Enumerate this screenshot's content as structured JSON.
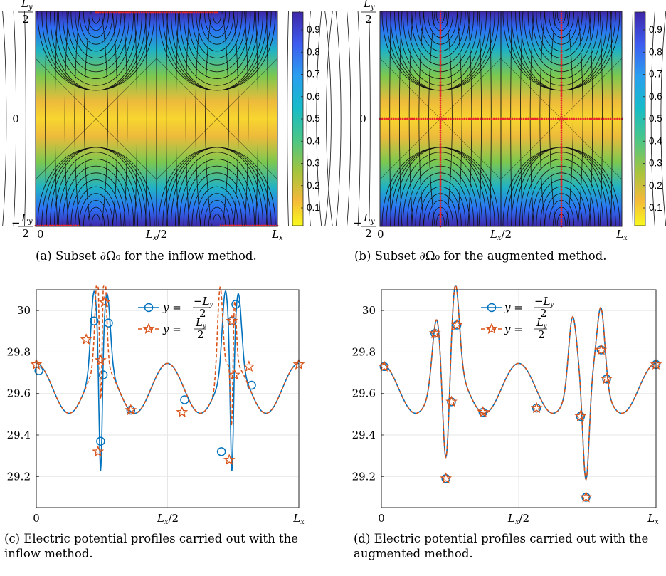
{
  "captions": {
    "a": "(a) Subset ∂Ω₀ for the inflow method.",
    "b": "(b) Subset ∂Ω₀ for the augmented method.",
    "c": "(c) Electric potential profiles carried out with the inflow method.",
    "d": "(d) Electric potential profiles carried out with the augmented method."
  },
  "colorbar_ticks": [
    "0.1",
    "0.2",
    "0.3",
    "0.4",
    "0.5",
    "0.6",
    "0.7",
    "0.8",
    "0.9"
  ],
  "colors": {
    "blue_series": "#0072bd",
    "orange_series": "#d95319",
    "boundary_marker": "#e8262a"
  },
  "chart_data": [
    {
      "id": "a",
      "type": "heatmap",
      "description_field": "field magnitude with streamlines, periodic in x",
      "xticks": [
        "0",
        "L_x/2",
        "L_x"
      ],
      "yticks": [
        "-L_y/2",
        "0",
        "L_y/2"
      ],
      "colorbar": {
        "range": [
          0,
          1
        ],
        "ticks": [
          0.1,
          0.2,
          0.3,
          0.4,
          0.5,
          0.6,
          0.7,
          0.8,
          0.9
        ]
      },
      "subset": "top and bottom boundary segments (inflow)"
    },
    {
      "id": "b",
      "type": "heatmap",
      "xticks": [
        "0",
        "L_x/2",
        "L_x"
      ],
      "yticks": [
        "-L_y/2",
        "0",
        "L_y/2"
      ],
      "colorbar": {
        "range": [
          0,
          1
        ],
        "ticks": [
          0.1,
          0.2,
          0.3,
          0.4,
          0.5,
          0.6,
          0.7,
          0.8,
          0.9
        ]
      },
      "subset": "vertical lines at x=L_x/4, 3L_x/4 and horizontal line y=0"
    },
    {
      "id": "c",
      "type": "line",
      "xlim": [
        0,
        1
      ],
      "ylim": [
        29.05,
        30.1
      ],
      "yticks": [
        29.2,
        29.4,
        29.6,
        29.8,
        30
      ],
      "xtick_labels": [
        "0",
        "L_x/2",
        "L_x"
      ],
      "grid": true,
      "legend": "top-center",
      "series": [
        {
          "name": "y = -L_y/2",
          "color": "#0072bd",
          "style": "solid",
          "marker": "circle",
          "x": [
            0.01,
            0.22,
            0.245,
            0.255,
            0.275,
            0.36,
            0.565,
            0.705,
            0.745,
            0.76,
            0.82
          ],
          "y": [
            29.71,
            29.95,
            29.37,
            29.69,
            29.94,
            29.52,
            29.57,
            29.32,
            29.95,
            30.03,
            29.64
          ]
        },
        {
          "name": "y = L_y/2",
          "color": "#d95319",
          "style": "dashed",
          "marker": "star",
          "x": [
            0.0,
            0.19,
            0.235,
            0.245,
            0.26,
            0.36,
            0.555,
            0.735,
            0.745,
            0.755,
            0.81,
            1.0
          ],
          "y": [
            29.74,
            29.86,
            29.32,
            29.76,
            30.04,
            29.52,
            29.51,
            29.28,
            29.95,
            29.69,
            29.73,
            29.74
          ]
        }
      ]
    },
    {
      "id": "d",
      "type": "line",
      "xlim": [
        0,
        1
      ],
      "ylim": [
        29.05,
        30.1
      ],
      "yticks": [
        29.2,
        29.4,
        29.6,
        29.8,
        30
      ],
      "xtick_labels": [
        "0",
        "L_x/2",
        "L_x"
      ],
      "grid": true,
      "legend": "top-center",
      "series": [
        {
          "name": "y = -L_y/2",
          "color": "#0072bd",
          "style": "solid",
          "marker": "circle",
          "x": [
            0.01,
            0.195,
            0.235,
            0.255,
            0.275,
            0.37,
            0.565,
            0.725,
            0.745,
            0.8,
            0.82,
            1.0
          ],
          "y": [
            29.73,
            29.89,
            29.19,
            29.56,
            29.93,
            29.51,
            29.53,
            29.49,
            29.1,
            29.81,
            29.67,
            29.74
          ]
        },
        {
          "name": "y = L_y/2",
          "color": "#d95319",
          "style": "dashed",
          "marker": "star",
          "x": [
            0.01,
            0.195,
            0.235,
            0.255,
            0.275,
            0.37,
            0.565,
            0.725,
            0.745,
            0.8,
            0.82,
            1.0
          ],
          "y": [
            29.73,
            29.89,
            29.19,
            29.56,
            29.93,
            29.51,
            29.53,
            29.49,
            29.1,
            29.81,
            29.67,
            29.74
          ]
        }
      ]
    }
  ]
}
